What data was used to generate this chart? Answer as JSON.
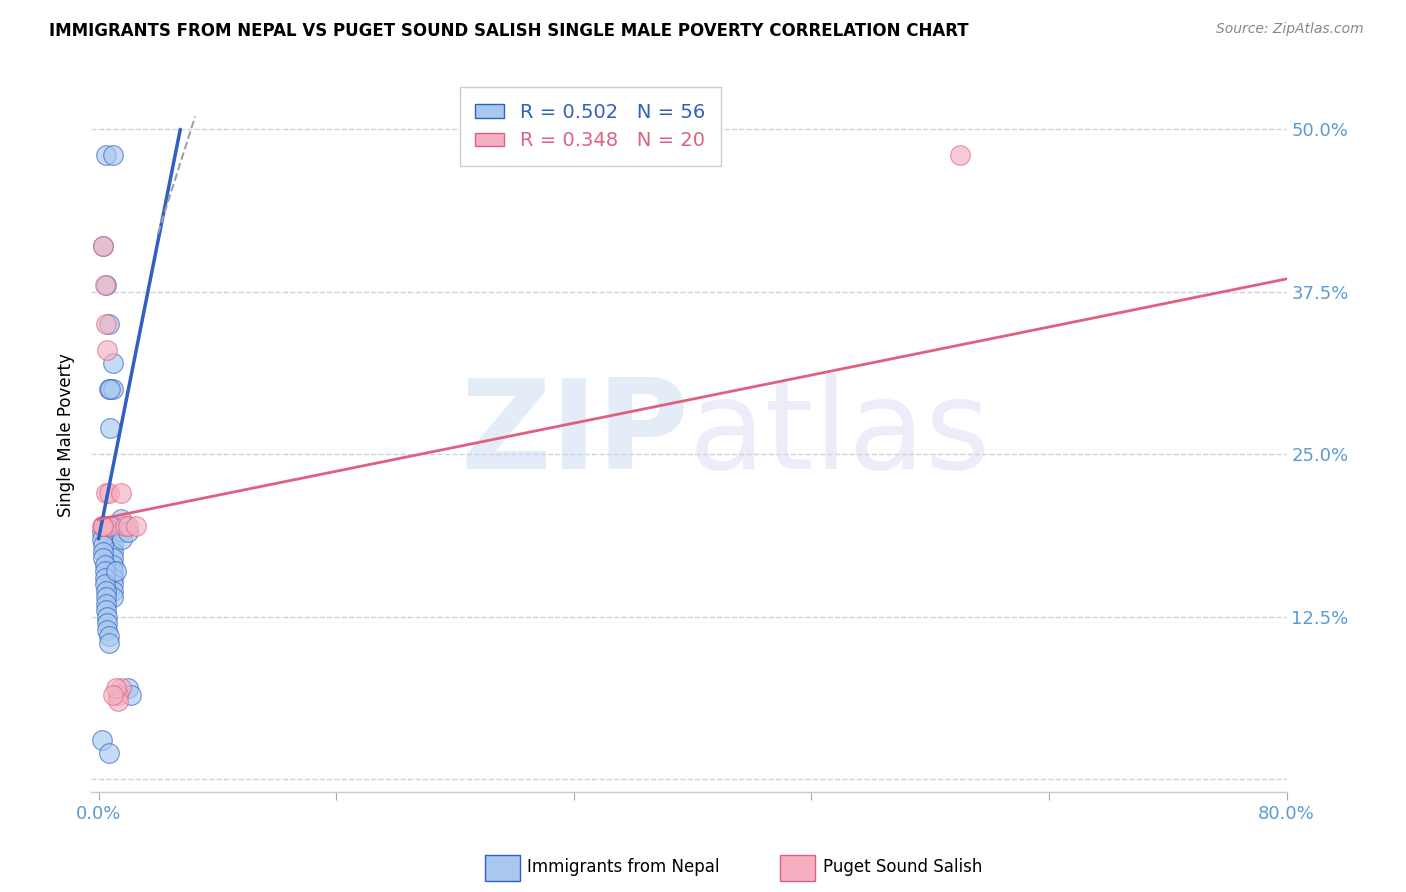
{
  "title": "IMMIGRANTS FROM NEPAL VS PUGET SOUND SALISH SINGLE MALE POVERTY CORRELATION CHART",
  "source": "Source: ZipAtlas.com",
  "ylabel": "Single Male Poverty",
  "watermark": "ZIPatlas",
  "xlim": [
    -0.005,
    0.8
  ],
  "ylim": [
    -0.01,
    0.54
  ],
  "yticks": [
    0.0,
    0.125,
    0.25,
    0.375,
    0.5
  ],
  "ytick_labels": [
    "",
    "12.5%",
    "25.0%",
    "37.5%",
    "50.0%"
  ],
  "xticks": [
    0.0,
    0.16,
    0.32,
    0.48,
    0.64,
    0.8
  ],
  "xtick_labels": [
    "0.0%",
    "",
    "",
    "",
    "",
    "80.0%"
  ],
  "legend_blue_r": "R = 0.502",
  "legend_blue_n": "N = 56",
  "legend_pink_r": "R = 0.348",
  "legend_pink_n": "N = 20",
  "blue_color": "#a8c8f0",
  "pink_color": "#f4b0c0",
  "blue_line_color": "#3060c0",
  "pink_line_color": "#e06080",
  "axis_color": "#5b9bd5",
  "grid_color": "#c8d4e0",
  "blue_scatter": {
    "x": [
      0.005,
      0.01,
      0.003,
      0.005,
      0.007,
      0.01,
      0.007,
      0.01,
      0.008,
      0.008,
      0.003,
      0.005,
      0.006,
      0.007,
      0.008,
      0.008,
      0.008,
      0.009,
      0.01,
      0.01,
      0.01,
      0.01,
      0.01,
      0.01,
      0.01,
      0.01,
      0.01,
      0.01,
      0.01,
      0.002,
      0.002,
      0.003,
      0.003,
      0.003,
      0.004,
      0.004,
      0.004,
      0.004,
      0.005,
      0.005,
      0.005,
      0.005,
      0.006,
      0.006,
      0.006,
      0.007,
      0.007,
      0.015,
      0.016,
      0.016,
      0.012,
      0.02,
      0.02,
      0.022,
      0.002,
      0.007
    ],
    "y": [
      0.48,
      0.48,
      0.41,
      0.38,
      0.35,
      0.32,
      0.3,
      0.3,
      0.27,
      0.3,
      0.195,
      0.195,
      0.195,
      0.195,
      0.195,
      0.195,
      0.195,
      0.195,
      0.195,
      0.195,
      0.18,
      0.175,
      0.17,
      0.165,
      0.16,
      0.155,
      0.15,
      0.145,
      0.14,
      0.19,
      0.185,
      0.18,
      0.175,
      0.17,
      0.165,
      0.16,
      0.155,
      0.15,
      0.145,
      0.14,
      0.135,
      0.13,
      0.125,
      0.12,
      0.115,
      0.11,
      0.105,
      0.2,
      0.19,
      0.185,
      0.16,
      0.19,
      0.07,
      0.065,
      0.03,
      0.02
    ]
  },
  "pink_scatter": {
    "x": [
      0.003,
      0.004,
      0.005,
      0.006,
      0.004,
      0.005,
      0.007,
      0.008,
      0.002,
      0.003,
      0.015,
      0.018,
      0.02,
      0.025,
      0.58,
      0.015,
      0.013,
      0.013,
      0.012,
      0.01
    ],
    "y": [
      0.41,
      0.38,
      0.35,
      0.33,
      0.195,
      0.22,
      0.22,
      0.195,
      0.195,
      0.195,
      0.22,
      0.195,
      0.195,
      0.195,
      0.48,
      0.07,
      0.065,
      0.06,
      0.07,
      0.065
    ]
  },
  "blue_trendline": {
    "x": [
      0.0,
      0.055
    ],
    "y": [
      0.185,
      0.5
    ]
  },
  "blue_trendline_dashed": {
    "x": [
      0.04,
      0.065
    ],
    "y": [
      0.42,
      0.51
    ]
  },
  "pink_trendline": {
    "x": [
      0.0,
      0.8
    ],
    "y": [
      0.2,
      0.385
    ]
  }
}
